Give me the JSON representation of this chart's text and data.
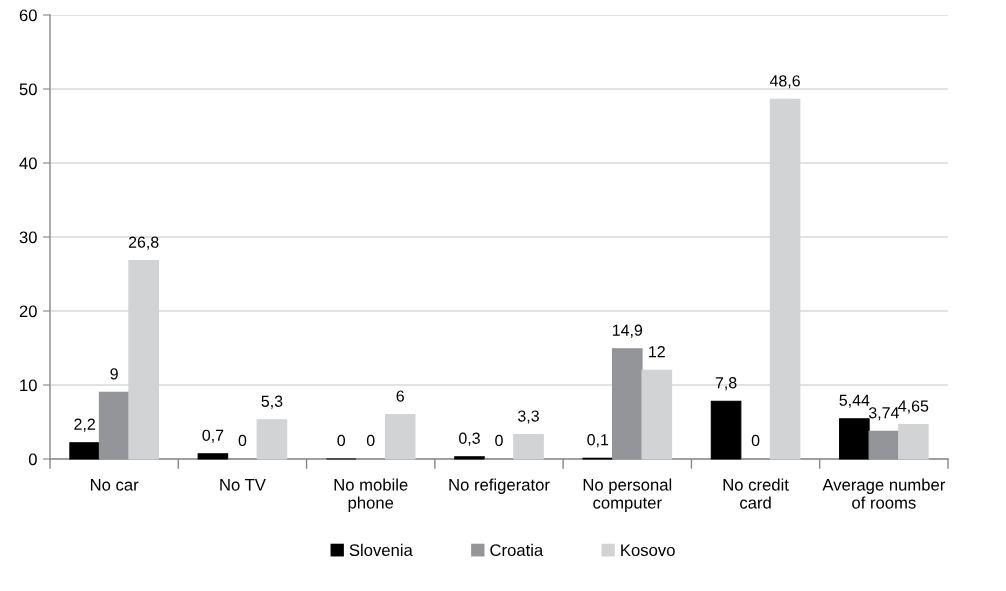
{
  "chart_data": {
    "type": "bar",
    "categories": [
      "No car",
      "No TV",
      "No mobile\nphone",
      "No refigerator",
      "No personal\ncomputer",
      "No credit\ncard",
      "Average number\nof rooms"
    ],
    "series": [
      {
        "name": "Slovenia",
        "color": "#000000",
        "values": [
          2.2,
          0.7,
          0,
          0.3,
          0.1,
          7.8,
          5.44
        ],
        "value_labels": [
          "2,2",
          "0,7",
          "0",
          "0,3",
          "0,1",
          "7,8",
          "5,44"
        ]
      },
      {
        "name": "Croatia",
        "color": "#939598",
        "values": [
          9,
          0,
          0,
          0,
          14.9,
          0,
          3.74
        ],
        "value_labels": [
          "9",
          "0",
          "0",
          "0",
          "14,9",
          "0",
          "3,74"
        ]
      },
      {
        "name": "Kosovo",
        "color": "#d1d3d4",
        "values": [
          26.8,
          5.3,
          6,
          3.3,
          12,
          48.6,
          4.65
        ],
        "value_labels": [
          "26,8",
          "5,3",
          "6",
          "3,3",
          "12",
          "48,6",
          "4,65"
        ]
      }
    ],
    "ylim": [
      0,
      60
    ],
    "yticks": [
      0,
      10,
      20,
      30,
      40,
      50,
      60
    ],
    "grid": "y",
    "legend": "bottom"
  }
}
